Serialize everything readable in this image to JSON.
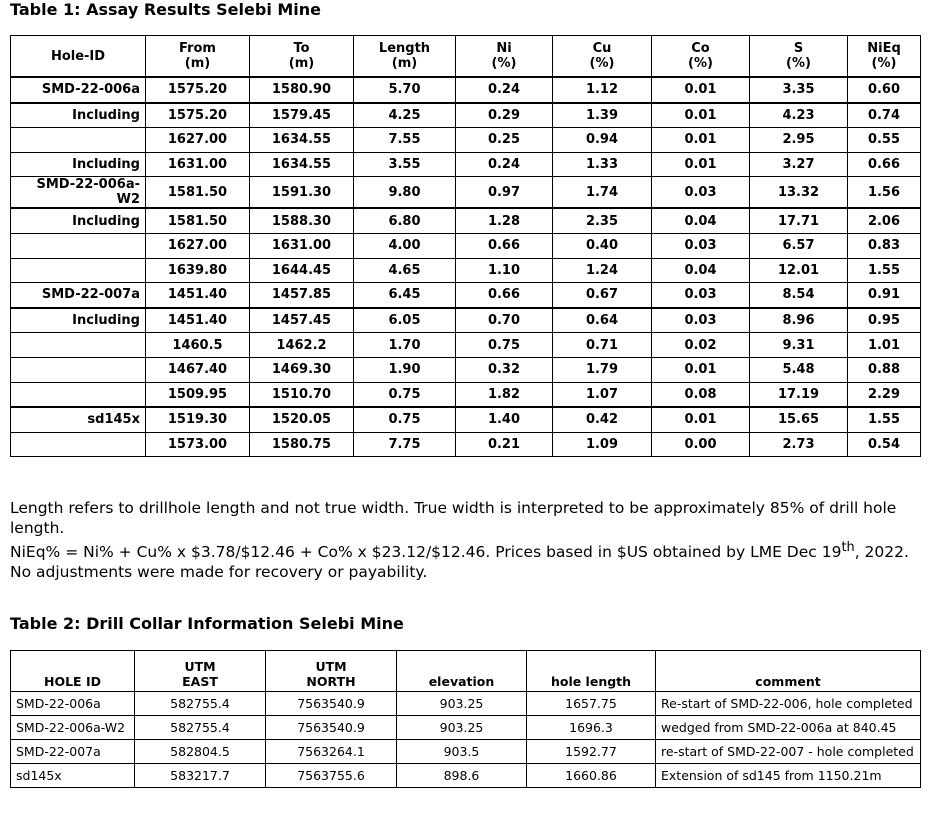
{
  "table1": {
    "title": "Table 1: Assay Results Selebi Mine",
    "header": [
      [
        "Hole-ID"
      ],
      [
        "From",
        "(m)"
      ],
      [
        "To",
        "(m)"
      ],
      [
        "Length",
        "(m)"
      ],
      [
        "Ni",
        "(%)"
      ],
      [
        "Cu",
        "(%)"
      ],
      [
        "Co",
        "(%)"
      ],
      [
        "S",
        "(%)"
      ],
      [
        "NiEq",
        "(%)"
      ]
    ],
    "rows": [
      [
        "SMD-22-006a",
        "1575.20",
        "1580.90",
        "5.70",
        "0.24",
        "1.12",
        "0.01",
        "3.35",
        "0.60"
      ],
      [
        "Including",
        "1575.20",
        "1579.45",
        "4.25",
        "0.29",
        "1.39",
        "0.01",
        "4.23",
        "0.74"
      ],
      [
        null,
        "1627.00",
        "1634.55",
        "7.55",
        "0.25",
        "0.94",
        "0.01",
        "2.95",
        "0.55"
      ],
      [
        "Including",
        "1631.00",
        "1634.55",
        "3.55",
        "0.24",
        "1.33",
        "0.01",
        "3.27",
        "0.66"
      ],
      [
        "SMD-22-006a-W2",
        "1581.50",
        "1591.30",
        "9.80",
        "0.97",
        "1.74",
        "0.03",
        "13.32",
        "1.56"
      ],
      [
        "Including",
        "1581.50",
        "1588.30",
        "6.80",
        "1.28",
        "2.35",
        "0.04",
        "17.71",
        "2.06"
      ],
      [
        null,
        "1627.00",
        "1631.00",
        "4.00",
        "0.66",
        "0.40",
        "0.03",
        "6.57",
        "0.83"
      ],
      [
        null,
        "1639.80",
        "1644.45",
        "4.65",
        "1.10",
        "1.24",
        "0.04",
        "12.01",
        "1.55"
      ],
      [
        "SMD-22-007a",
        "1451.40",
        "1457.85",
        "6.45",
        "0.66",
        "0.67",
        "0.03",
        "8.54",
        "0.91"
      ],
      [
        "Including",
        "1451.40",
        "1457.45",
        "6.05",
        "0.70",
        "0.64",
        "0.03",
        "8.96",
        "0.95"
      ],
      [
        null,
        "1460.5",
        "1462.2",
        "1.70",
        "0.75",
        "0.71",
        "0.02",
        "9.31",
        "1.01"
      ],
      [
        null,
        "1467.40",
        "1469.30",
        "1.90",
        "0.32",
        "1.79",
        "0.01",
        "5.48",
        "0.88"
      ],
      [
        null,
        "1509.95",
        "1510.70",
        "0.75",
        "1.82",
        "1.07",
        "0.08",
        "17.19",
        "2.29"
      ],
      [
        "sd145x",
        "1519.30",
        "1520.05",
        "0.75",
        "1.40",
        "0.42",
        "0.01",
        "15.65",
        "1.55"
      ],
      [
        null,
        "1573.00",
        "1580.75",
        "7.75",
        "0.21",
        "1.09",
        "0.00",
        "2.73",
        "0.54"
      ]
    ]
  },
  "notes": [
    [
      "Length refers to drillhole length and not true width. True width is interpreted to be approximately 85% of drill hole length."
    ],
    [
      "NiEq% = Ni% + Cu% x $3.78/$12.46 + Co% x $23.12/$12.46. Prices based in $US obtained by LME Dec 19",
      "th",
      ", 2022."
    ],
    [
      "No adjustments were made for recovery or payability."
    ]
  ],
  "table2": {
    "title": "Table 2: Drill Collar Information Selebi Mine",
    "header": [
      [
        "HOLE ID"
      ],
      [
        "UTM",
        "EAST"
      ],
      [
        "UTM",
        "NORTH"
      ],
      [
        "elevation"
      ],
      [
        "hole length"
      ],
      [
        "comment"
      ]
    ],
    "rows": [
      [
        "SMD-22-006a",
        "582755.4",
        "7563540.9",
        "903.25",
        "1657.75",
        "Re-start of SMD-22-006, hole completed"
      ],
      [
        "SMD-22-006a-W2",
        "582755.4",
        "7563540.9",
        "903.25",
        "1696.3",
        "wedged from SMD-22-006a at 840.45"
      ],
      [
        "SMD-22-007a",
        "582804.5",
        "7563264.1",
        "903.5",
        "1592.77",
        "re-start of SMD-22-007 - hole completed"
      ],
      [
        "sd145x",
        "583217.7",
        "7563755.6",
        "898.6",
        "1660.86",
        "Extension of sd145 from 1150.21m"
      ]
    ]
  }
}
